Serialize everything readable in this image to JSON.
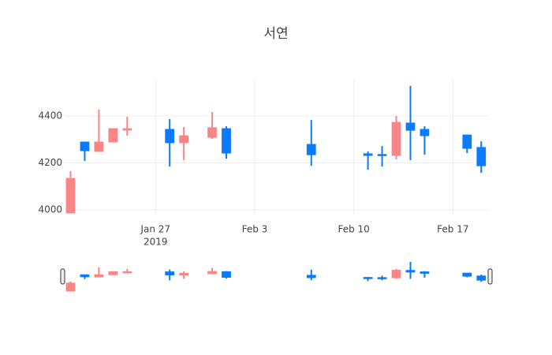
{
  "chart_data": {
    "type": "candlestick",
    "title": "서연",
    "x": [
      "2019-01-21",
      "2019-01-22",
      "2019-01-23",
      "2019-01-24",
      "2019-01-25",
      "2019-01-28",
      "2019-01-29",
      "2019-01-31",
      "2019-02-01",
      "2019-02-07",
      "2019-02-11",
      "2019-02-12",
      "2019-02-13",
      "2019-02-14",
      "2019-02-15",
      "2019-02-18",
      "2019-02-19"
    ],
    "open": [
      3987,
      4289,
      4249,
      4289,
      4340,
      4343,
      4286,
      4309,
      4346,
      4279,
      4239,
      4236,
      4232,
      4370,
      4343,
      4319,
      4266
    ],
    "high": [
      4165,
      4289,
      4427,
      4346,
      4397,
      4387,
      4353,
      4417,
      4356,
      4383,
      4249,
      4272,
      4400,
      4528,
      4356,
      4319,
      4292
    ],
    "low": [
      3985,
      4208,
      4249,
      4289,
      4316,
      4185,
      4212,
      4302,
      4218,
      4188,
      4171,
      4185,
      4215,
      4212,
      4235,
      4242,
      4158
    ],
    "close": [
      4134,
      4252,
      4289,
      4346,
      4346,
      4286,
      4316,
      4350,
      4242,
      4235,
      4232,
      4232,
      4373,
      4339,
      4316,
      4262,
      4188
    ],
    "increasing_color": "#f88686",
    "decreasing_color": "#0a7bff",
    "xlim": [
      "2019-01-20T14:00",
      "2019-02-19T13:00"
    ],
    "xticks": [
      {
        "value": "2019-01-27",
        "label": "Jan 27"
      },
      {
        "value": "2019-02-03",
        "label": "Feb 3"
      },
      {
        "value": "2019-02-10",
        "label": "Feb 10"
      },
      {
        "value": "2019-02-17",
        "label": "Feb 17"
      }
    ],
    "x_year_label": "2019",
    "ylim": [
      3980,
      4558
    ],
    "yticks": [
      4000,
      4200,
      4400
    ],
    "grid": true,
    "rangeslider": true
  }
}
